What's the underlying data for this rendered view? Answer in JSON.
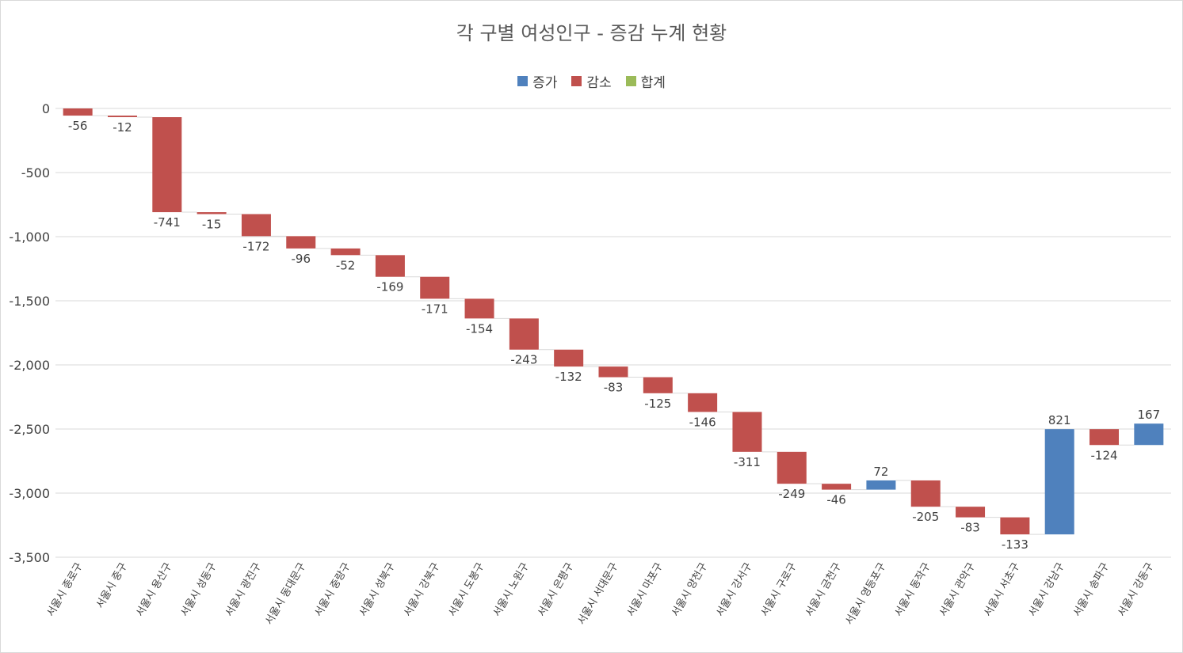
{
  "chart_data": {
    "type": "waterfall",
    "title": "각 구별 여성인구 - 증감 누계 현황",
    "legend": [
      {
        "name": "증가",
        "color": "#4f81bd"
      },
      {
        "name": "감소",
        "color": "#c0504d"
      },
      {
        "name": "합계",
        "color": "#9bbb59"
      }
    ],
    "ylim": [
      -3500,
      0
    ],
    "yticks": [
      0,
      -500,
      -1000,
      -1500,
      -2000,
      -2500,
      -3000,
      -3500
    ],
    "ytick_labels": [
      "0",
      "-500",
      "-1,000",
      "-1,500",
      "-2,000",
      "-2,500",
      "-3,000",
      "-3,500"
    ],
    "grid": true,
    "legend_position": "top",
    "categories": [
      "서울시 종로구",
      "서울시 중구",
      "서울시 용산구",
      "서울시 성동구",
      "서울시 광진구",
      "서울시 동대문구",
      "서울시 중랑구",
      "서울시 성북구",
      "서울시 강북구",
      "서울시 도봉구",
      "서울시 노원구",
      "서울시 은평구",
      "서울시 서대문구",
      "서울시 마포구",
      "서울시 양천구",
      "서울시 강서구",
      "서울시 구로구",
      "서울시 금천구",
      "서울시 영등포구",
      "서울시 동작구",
      "서울시 관악구",
      "서울시 서초구",
      "서울시 강남구",
      "서울시 송파구",
      "서울시 강동구"
    ],
    "values": [
      -56,
      -12,
      -741,
      -15,
      -172,
      -96,
      -52,
      -169,
      -171,
      -154,
      -243,
      -132,
      -83,
      -125,
      -146,
      -311,
      -249,
      -46,
      72,
      -205,
      -83,
      -133,
      821,
      -124,
      167
    ],
    "increase_color": "#4f81bd",
    "decrease_color": "#c0504d",
    "total_color": "#9bbb59"
  }
}
